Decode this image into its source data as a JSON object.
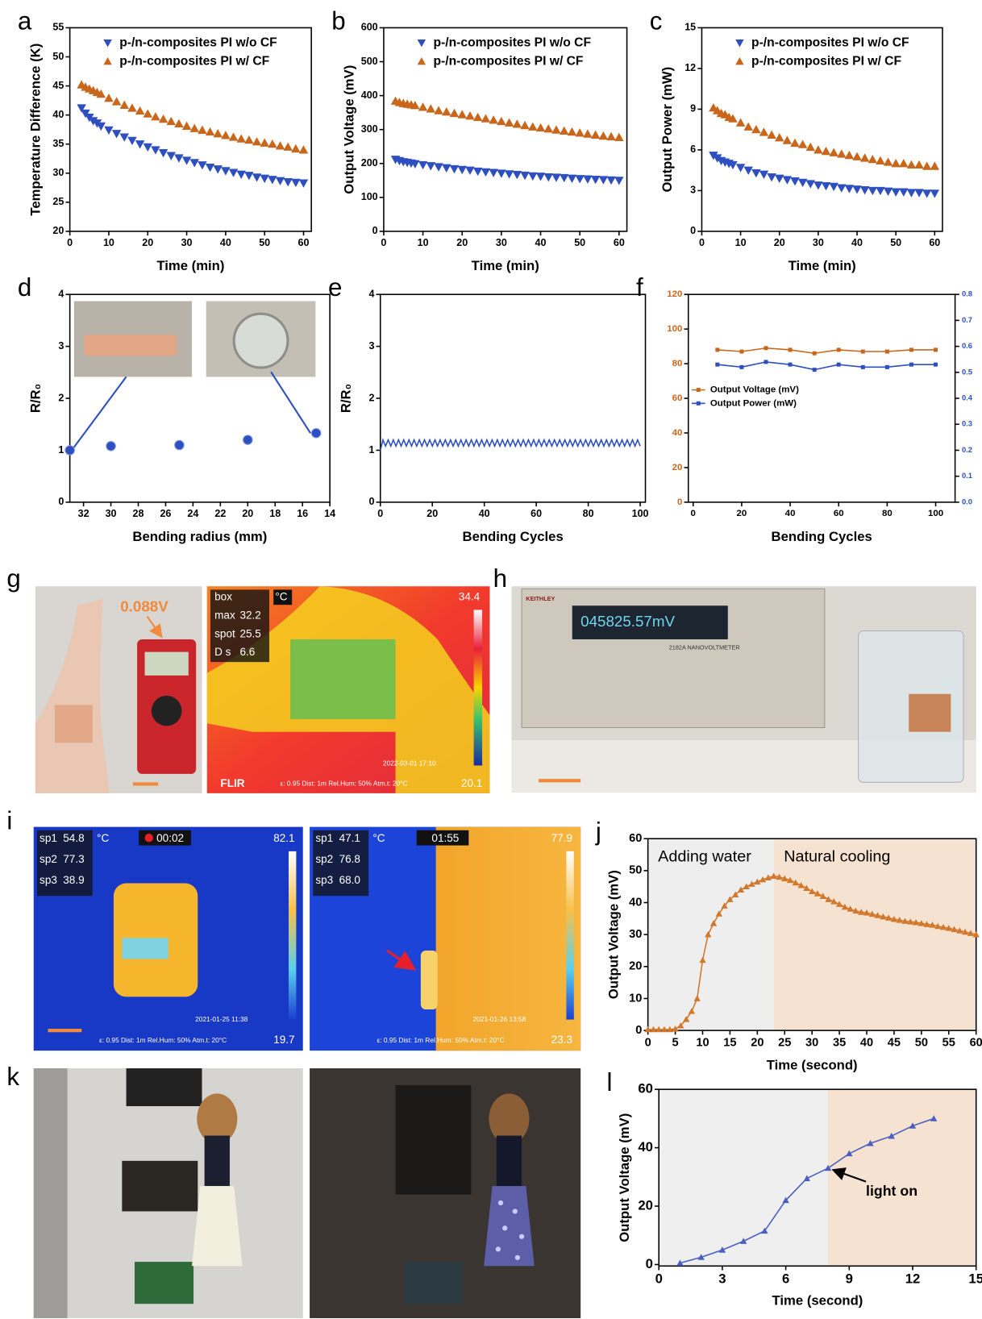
{
  "chart_data": [
    {
      "type": "scatter",
      "label": "a",
      "xlabel": "Time (min)",
      "ylabel": "Temperature Difference (K)",
      "legend": "upper left",
      "x": [
        3,
        4,
        5,
        6,
        7,
        8,
        10,
        12,
        14,
        16,
        18,
        20,
        22,
        24,
        26,
        28,
        30,
        32,
        34,
        36,
        38,
        40,
        42,
        44,
        46,
        48,
        50,
        52,
        54,
        56,
        58,
        60
      ],
      "xlim": [
        0,
        62
      ],
      "xticks": [
        0,
        10,
        20,
        30,
        40,
        50,
        60
      ],
      "ylim": [
        20,
        55
      ],
      "yticks": [
        20,
        25,
        30,
        35,
        40,
        45,
        50,
        55
      ],
      "series": [
        {
          "name": "p-/n-composites PI w/o CF",
          "color": "#2e4fbf",
          "marker": "triangle-down",
          "values": [
            41.2,
            40.3,
            39.6,
            39.0,
            38.6,
            38.1,
            37.4,
            36.8,
            36.2,
            35.6,
            35.0,
            34.5,
            34.0,
            33.5,
            33.0,
            32.6,
            32.2,
            31.8,
            31.4,
            31.0,
            30.7,
            30.4,
            30.1,
            29.8,
            29.6,
            29.3,
            29.1,
            28.9,
            28.7,
            28.5,
            28.4,
            28.3
          ]
        },
        {
          "name": "p-/n-composites PI w/ CF",
          "color": "#c8661b",
          "marker": "triangle-up",
          "values": [
            45.2,
            44.8,
            44.5,
            44.2,
            43.9,
            43.6,
            42.9,
            42.3,
            41.7,
            41.2,
            40.7,
            40.2,
            39.7,
            39.3,
            38.9,
            38.5,
            38.1,
            37.7,
            37.4,
            37.1,
            36.8,
            36.5,
            36.2,
            35.9,
            35.7,
            35.4,
            35.2,
            35.0,
            34.7,
            34.5,
            34.2,
            34.0
          ]
        }
      ]
    },
    {
      "type": "scatter",
      "label": "b",
      "xlabel": "Time (min)",
      "ylabel": "Output Voltage (mV)",
      "legend": "upper left",
      "x": [
        3,
        4,
        5,
        6,
        7,
        8,
        10,
        12,
        14,
        16,
        18,
        20,
        22,
        24,
        26,
        28,
        30,
        32,
        34,
        36,
        38,
        40,
        42,
        44,
        46,
        48,
        50,
        52,
        54,
        56,
        58,
        60
      ],
      "xlim": [
        0,
        62
      ],
      "xticks": [
        0,
        10,
        20,
        30,
        40,
        50,
        60
      ],
      "ylim": [
        0,
        600
      ],
      "yticks": [
        0,
        100,
        200,
        300,
        400,
        500,
        600
      ],
      "series": [
        {
          "name": "p-/n-composites PI w/o CF",
          "color": "#2e4fbf",
          "marker": "triangle-down",
          "values": [
            212,
            208,
            205,
            203,
            201,
            199,
            196,
            193,
            190,
            187,
            184,
            182,
            180,
            177,
            175,
            173,
            171,
            169,
            167,
            165,
            163,
            162,
            160,
            159,
            158,
            156,
            155,
            154,
            153,
            152,
            151,
            150
          ]
        },
        {
          "name": "p-/n-composites PI w/ CF",
          "color": "#c8661b",
          "marker": "triangle-up",
          "values": [
            384,
            380,
            377,
            375,
            373,
            371,
            366,
            361,
            356,
            352,
            348,
            344,
            340,
            336,
            332,
            328,
            324,
            320,
            316,
            312,
            308,
            305,
            302,
            299,
            296,
            293,
            290,
            287,
            284,
            281,
            279,
            277
          ]
        }
      ]
    },
    {
      "type": "scatter",
      "label": "c",
      "xlabel": "Time (min)",
      "ylabel": "Output Power (mW)",
      "legend": "upper left",
      "x": [
        3,
        4,
        5,
        6,
        7,
        8,
        10,
        12,
        14,
        16,
        18,
        20,
        22,
        24,
        26,
        28,
        30,
        32,
        34,
        36,
        38,
        40,
        42,
        44,
        46,
        48,
        50,
        52,
        54,
        56,
        58,
        60
      ],
      "xlim": [
        0,
        62
      ],
      "xticks": [
        0,
        10,
        20,
        30,
        40,
        50,
        60
      ],
      "ylim": [
        0,
        15
      ],
      "yticks": [
        0,
        3,
        6,
        9,
        12,
        15
      ],
      "series": [
        {
          "name": "p-/n-composites PI w/o CF",
          "color": "#2e4fbf",
          "marker": "triangle-down",
          "values": [
            5.6,
            5.4,
            5.2,
            5.1,
            5.0,
            4.9,
            4.7,
            4.5,
            4.3,
            4.2,
            4.0,
            3.9,
            3.8,
            3.7,
            3.6,
            3.5,
            3.4,
            3.35,
            3.3,
            3.2,
            3.15,
            3.1,
            3.05,
            3.0,
            3.0,
            2.95,
            2.9,
            2.9,
            2.85,
            2.85,
            2.8,
            2.8
          ]
        },
        {
          "name": "p-/n-composites PI w/ CF",
          "color": "#c8661b",
          "marker": "triangle-up",
          "values": [
            9.1,
            8.9,
            8.7,
            8.6,
            8.4,
            8.3,
            8.0,
            7.7,
            7.5,
            7.3,
            7.1,
            6.9,
            6.7,
            6.5,
            6.4,
            6.2,
            6.0,
            5.9,
            5.8,
            5.7,
            5.6,
            5.5,
            5.4,
            5.3,
            5.2,
            5.1,
            5.0,
            5.0,
            4.9,
            4.9,
            4.8,
            4.8
          ]
        }
      ]
    },
    {
      "type": "scatter",
      "label": "d",
      "xlabel": "Bending radius (mm)",
      "ylabel": "R/R₀",
      "x": [
        33,
        30,
        25,
        20,
        15
      ],
      "xlim": [
        33,
        14
      ],
      "xticks": [
        32,
        30,
        28,
        26,
        24,
        22,
        20,
        18,
        16,
        14
      ],
      "ylim": [
        0,
        4
      ],
      "yticks": [
        0,
        1,
        2,
        3,
        4
      ],
      "series": [
        {
          "color": "#2e4fbf",
          "marker": "circle",
          "values": [
            1.0,
            1.08,
            1.1,
            1.2,
            1.33
          ]
        }
      ]
    },
    {
      "type": "line",
      "label": "e",
      "xlabel": "Bending Cycles",
      "ylabel": "R/R₀",
      "x": [
        0,
        1,
        2,
        3,
        4,
        5,
        6,
        7,
        8,
        9,
        10,
        11,
        12,
        13,
        14,
        15,
        16,
        17,
        18,
        19,
        20,
        21,
        22,
        23,
        24,
        25,
        26,
        27,
        28,
        29,
        30,
        31,
        32,
        33,
        34,
        35,
        36,
        37,
        38,
        39,
        40,
        41,
        42,
        43,
        44,
        45,
        46,
        47,
        48,
        49,
        50,
        51,
        52,
        53,
        54,
        55,
        56,
        57,
        58,
        59,
        60,
        61,
        62,
        63,
        64,
        65,
        66,
        67,
        68,
        69,
        70,
        71,
        72,
        73,
        74,
        75,
        76,
        77,
        78,
        79,
        80,
        81,
        82,
        83,
        84,
        85,
        86,
        87,
        88,
        89,
        90,
        91,
        92,
        93,
        94,
        95,
        96,
        97,
        98,
        99,
        100
      ],
      "xlim": [
        0,
        102
      ],
      "xticks": [
        0,
        20,
        40,
        60,
        80,
        100
      ],
      "ylim": [
        0,
        4
      ],
      "yticks": [
        0,
        1,
        2,
        3,
        4
      ],
      "series": [
        {
          "color": "#2e4fbf",
          "marker": "none",
          "values": [
            1.0,
            1.2,
            1.08,
            1.2,
            1.08,
            1.2,
            1.08,
            1.2,
            1.08,
            1.2,
            1.08,
            1.2,
            1.08,
            1.2,
            1.08,
            1.2,
            1.08,
            1.2,
            1.08,
            1.2,
            1.08,
            1.2,
            1.08,
            1.2,
            1.08,
            1.2,
            1.08,
            1.2,
            1.08,
            1.2,
            1.08,
            1.2,
            1.08,
            1.2,
            1.08,
            1.2,
            1.08,
            1.2,
            1.08,
            1.2,
            1.08,
            1.2,
            1.08,
            1.2,
            1.08,
            1.2,
            1.08,
            1.2,
            1.08,
            1.2,
            1.08,
            1.2,
            1.08,
            1.2,
            1.08,
            1.2,
            1.08,
            1.2,
            1.08,
            1.2,
            1.08,
            1.2,
            1.08,
            1.2,
            1.08,
            1.2,
            1.08,
            1.2,
            1.08,
            1.2,
            1.08,
            1.2,
            1.08,
            1.2,
            1.08,
            1.2,
            1.08,
            1.2,
            1.08,
            1.2,
            1.08,
            1.2,
            1.08,
            1.2,
            1.08,
            1.2,
            1.08,
            1.2,
            1.08,
            1.2,
            1.08,
            1.2,
            1.08,
            1.2,
            1.08,
            1.2,
            1.08,
            1.2,
            1.08,
            1.2,
            1.08
          ]
        }
      ]
    },
    {
      "type": "line",
      "label": "f",
      "xlabel": "Bending Cycles",
      "legend": "center left",
      "y_color": "#c8661b",
      "y2_color": "#2e4fbf",
      "x": [
        10,
        20,
        30,
        40,
        50,
        60,
        70,
        80,
        90,
        100
      ],
      "xlim": [
        -2,
        108
      ],
      "xticks": [
        0,
        20,
        40,
        60,
        80,
        100
      ],
      "ylim": [
        0,
        120
      ],
      "yticks": [
        0,
        20,
        40,
        60,
        80,
        100,
        120
      ],
      "y2lim": [
        0,
        0.8
      ],
      "y2ticks": [
        {
          "value": 0,
          "label": "0.0"
        },
        0.1,
        0.2,
        0.3,
        0.4,
        0.5,
        0.6,
        0.7,
        0.8
      ],
      "series": [
        {
          "name": "Output Voltage (mV)",
          "color": "#c8661b",
          "marker": "square",
          "values": [
            88,
            87,
            89,
            88,
            86,
            88,
            87,
            87,
            88,
            88
          ]
        },
        {
          "name": "Output Power (mW)",
          "color": "#2e4fbf",
          "marker": "square",
          "axis": "y2",
          "values": [
            0.53,
            0.52,
            0.54,
            0.53,
            0.51,
            0.53,
            0.52,
            0.52,
            0.53,
            0.53
          ]
        }
      ]
    },
    {
      "type": "line",
      "label": "j",
      "xlabel": "Time (second)",
      "ylabel": "Output Voltage (mV)",
      "regions": [
        {
          "label": "Adding water",
          "from": 0,
          "to": 23,
          "color": "#eeeeee"
        },
        {
          "label": "Natural cooling",
          "from": 23,
          "to": 60,
          "color": "#f5e2d0"
        }
      ],
      "x": [
        0,
        1,
        2,
        3,
        4,
        5,
        6,
        7,
        8,
        9,
        10,
        11,
        12,
        13,
        14,
        15,
        16,
        17,
        18,
        19,
        20,
        21,
        22,
        23,
        24,
        25,
        26,
        27,
        28,
        29,
        30,
        31,
        32,
        33,
        34,
        35,
        36,
        37,
        38,
        39,
        40,
        41,
        42,
        43,
        44,
        45,
        46,
        47,
        48,
        49,
        50,
        51,
        52,
        53,
        54,
        55,
        56,
        57,
        58,
        59,
        60
      ],
      "xlim": [
        0,
        60
      ],
      "xticks": [
        0,
        5,
        10,
        15,
        20,
        25,
        30,
        35,
        40,
        45,
        50,
        55,
        60
      ],
      "ylim": [
        0,
        60
      ],
      "yticks": [
        0,
        10,
        20,
        30,
        40,
        50,
        60
      ],
      "series": [
        {
          "color": "#d2782c",
          "marker": "triangle-up",
          "values": [
            0.3,
            0.3,
            0.3,
            0.3,
            0.3,
            0.5,
            1.5,
            3.5,
            6,
            10,
            22,
            30,
            33.5,
            36.5,
            39,
            41,
            42.5,
            44,
            45,
            45.8,
            46.5,
            47.2,
            47.8,
            48.3,
            48,
            47.5,
            47,
            46.2,
            45.4,
            44.5,
            43.5,
            42.8,
            42,
            41,
            40.3,
            39.5,
            38.6,
            38,
            37.4,
            37,
            36.8,
            36.4,
            36,
            35.6,
            35.2,
            34.8,
            34.5,
            34.2,
            34,
            33.8,
            33.5,
            33.2,
            33,
            32.6,
            32.3,
            32,
            31.6,
            31.2,
            30.8,
            30.4,
            30
          ]
        }
      ]
    },
    {
      "type": "line",
      "label": "l",
      "xlabel": "Time (second)",
      "ylabel": "Output Voltage (mV)",
      "regions": [
        {
          "from": 0,
          "to": 8,
          "color": "#efefef"
        },
        {
          "from": 8,
          "to": 15,
          "color": "#f5e2d0"
        }
      ],
      "annotations": [
        {
          "text": "light on"
        }
      ],
      "x": [
        1,
        2,
        3,
        4,
        5,
        6,
        7,
        8,
        9,
        10,
        11,
        12,
        13
      ],
      "xlim": [
        0,
        15
      ],
      "xticks": [
        0,
        3,
        6,
        9,
        12,
        15
      ],
      "ylim": [
        -0.5,
        60
      ],
      "yticks": [
        0,
        20,
        40,
        60
      ],
      "series": [
        {
          "color": "#4a5fc0",
          "marker": "triangle-up",
          "values": [
            0.5,
            2.5,
            5,
            8,
            11.5,
            22,
            29.5,
            33,
            38,
            41.5,
            44,
            47.5,
            50
          ]
        }
      ]
    }
  ],
  "photos": {
    "g": {
      "label": "g",
      "voltage": "0.088V",
      "box": "box",
      "max_name": "max",
      "max": "32.2",
      "spot_name": "spot",
      "spot": "25.5",
      "ds_name": "D s",
      "ds": "6.6",
      "unit": "°C",
      "scale_max": "34.4",
      "scale_min": "20.1",
      "timestamp": "2022-03-01  17:10",
      "footer": "ε: 0.95  Dist: 1m Rel.Hum: 50% Atm.t: 20°C",
      "brand": "FLIR"
    },
    "h": {
      "label": "h",
      "display": "045825.57mV",
      "model": "2182A  NANOVOLTMETER",
      "brand": "KEITHLEY"
    },
    "i": {
      "label": "i",
      "unit": "°C",
      "footer": "ε: 0.95  Dist: 1m Rel.Hum: 50% Atm.t: 20°C",
      "left": {
        "spots": [
          {
            "name": "sp1",
            "value": "54.8"
          },
          {
            "name": "sp2",
            "value": "77.3"
          },
          {
            "name": "sp3",
            "value": "38.9"
          }
        ],
        "timer": "00:02",
        "scale_max": "82.1",
        "scale_min": "19.7",
        "timestamp": "2021-01-25  11:38"
      },
      "right": {
        "spots": [
          {
            "name": "sp1",
            "value": "47.1"
          },
          {
            "name": "sp2",
            "value": "76.8"
          },
          {
            "name": "sp3",
            "value": "68.0"
          }
        ],
        "timer": "01:55",
        "scale_max": "77.9",
        "scale_min": "23.3",
        "timestamp": "2021-01-26  13:58"
      }
    },
    "k": {
      "label": "k"
    }
  }
}
